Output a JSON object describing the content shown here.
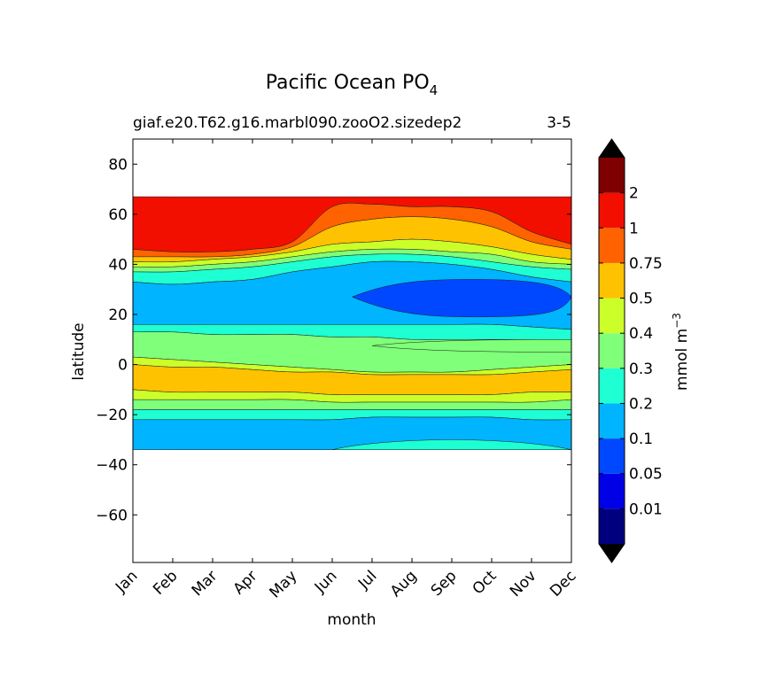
{
  "chart_data": {
    "type": "contourf",
    "title": "Pacific Ocean PO",
    "title_subscript": "4",
    "subtitle_left": "giaf.e20.T62.g16.marbl090.zooO2.sizedep2",
    "subtitle_right": "3-5",
    "xlabel": "month",
    "ylabel": "latitude",
    "x_ticks": [
      "Jan",
      "Feb",
      "Mar",
      "Apr",
      "May",
      "Jun",
      "Jul",
      "Aug",
      "Sep",
      "Oct",
      "Nov",
      "Dec"
    ],
    "y_ticks": [
      80,
      60,
      40,
      20,
      0,
      -20,
      -40,
      -60
    ],
    "y_tick_labels": [
      "80",
      "60",
      "40",
      "20",
      "0",
      "−20",
      "−40",
      "−60"
    ],
    "ylim": [
      -79,
      90
    ],
    "data_lat_range": [
      -34,
      67
    ],
    "colorbar": {
      "label": "mmol m",
      "label_superscript": "−3",
      "levels": [
        0,
        0.01,
        0.05,
        0.1,
        0.2,
        0.3,
        0.4,
        0.5,
        0.75,
        1,
        2,
        3
      ],
      "tick_labels": [
        "0.01",
        "0.05",
        "0.1",
        "0.2",
        "0.3",
        "0.4",
        "0.5",
        "0.75",
        "1",
        "2"
      ],
      "colors": [
        "#00007f",
        "#0000e6",
        "#0048ff",
        "#00b4ff",
        "#1fffd4",
        "#7fff7a",
        "#ccff29",
        "#ffc200",
        "#ff6200",
        "#f20f00",
        "#7f0000"
      ],
      "extend": "both",
      "extend_colors": [
        "#000000",
        "#000000"
      ]
    },
    "bands": [
      {
        "level": "1-2",
        "color": "#f20f00",
        "upper": [
          67,
          67,
          67,
          67,
          67,
          67,
          67,
          67,
          67,
          67,
          67,
          67
        ],
        "lower": [
          46,
          45,
          45,
          46,
          49,
          63,
          64,
          63,
          63,
          61,
          53,
          48
        ]
      },
      {
        "level": "0.75-1",
        "color": "#ff6200",
        "upper": [
          46,
          45,
          45,
          46,
          49,
          63,
          64,
          63,
          63,
          61,
          53,
          48
        ],
        "lower": [
          43,
          43,
          43,
          44,
          47,
          55,
          58,
          59,
          58,
          55,
          49,
          46
        ]
      },
      {
        "level": "0.5-0.75",
        "color": "#ffc200",
        "upper": [
          43,
          43,
          43,
          44,
          47,
          55,
          58,
          59,
          58,
          55,
          49,
          46
        ],
        "lower": [
          41,
          41,
          42,
          43,
          45,
          48,
          49,
          50,
          49,
          47,
          44,
          42
        ]
      },
      {
        "level": "0.4-0.5",
        "color": "#ccff29",
        "upper": [
          41,
          41,
          42,
          43,
          45,
          48,
          49,
          50,
          49,
          47,
          44,
          42
        ],
        "lower": [
          39,
          39,
          40,
          41,
          43,
          45,
          46,
          46,
          45,
          44,
          41,
          40
        ]
      },
      {
        "level": "0.3-0.4",
        "color": "#7fff7a",
        "upper": [
          39,
          39,
          40,
          41,
          43,
          45,
          46,
          46,
          45,
          44,
          41,
          40
        ],
        "lower": [
          37,
          37,
          38,
          39,
          41,
          43,
          44,
          44,
          43,
          41,
          39,
          38
        ]
      },
      {
        "level": "0.2-0.3",
        "color": "#1fffd4",
        "upper": [
          37,
          37,
          38,
          39,
          41,
          43,
          44,
          44,
          43,
          41,
          39,
          38
        ],
        "lower": [
          33,
          32,
          33,
          34,
          37,
          39,
          41,
          41,
          40,
          38,
          35,
          33
        ]
      },
      {
        "level": "0.1-0.2",
        "color": "#00b4ff",
        "upper": [
          33,
          32,
          33,
          34,
          37,
          39,
          41,
          41,
          40,
          38,
          35,
          33
        ],
        "lower": [
          16,
          16,
          16,
          16,
          16,
          16,
          16,
          16,
          16,
          16,
          15,
          14
        ]
      },
      {
        "level": "0.2-0.3",
        "color": "#1fffd4",
        "upper": [
          16,
          16,
          16,
          16,
          16,
          16,
          16,
          16,
          16,
          16,
          15,
          14
        ],
        "lower": [
          13,
          13,
          12,
          12,
          12,
          11,
          11,
          10,
          10,
          10,
          10,
          10
        ]
      },
      {
        "level": "0.3-0.4",
        "color": "#7fff7a",
        "upper": [
          13,
          13,
          12,
          12,
          12,
          11,
          11,
          10,
          10,
          10,
          10,
          10
        ],
        "lower": [
          3,
          2,
          1,
          0,
          -1,
          -2,
          -3,
          -3,
          -3,
          -2,
          -1,
          0
        ]
      },
      {
        "level": "0.4-0.5",
        "color": "#ccff29",
        "upper": [
          3,
          2,
          1,
          0,
          -1,
          -2,
          -3,
          -3,
          -3,
          -2,
          -1,
          0
        ],
        "lower": [
          0,
          -1,
          -1,
          -2,
          -3,
          -3,
          -4,
          -4,
          -4,
          -4,
          -3,
          -2
        ]
      },
      {
        "level": "0.5-0.75",
        "color": "#ffc200",
        "upper": [
          0,
          -1,
          -1,
          -2,
          -3,
          -3,
          -4,
          -4,
          -4,
          -4,
          -3,
          -2
        ],
        "lower": [
          -10,
          -11,
          -11,
          -11,
          -11,
          -12,
          -12,
          -12,
          -12,
          -12,
          -11,
          -11
        ]
      },
      {
        "level": "0.4-0.5",
        "color": "#ccff29",
        "upper": [
          -10,
          -11,
          -11,
          -11,
          -11,
          -12,
          -12,
          -12,
          -12,
          -12,
          -11,
          -11
        ],
        "lower": [
          -14,
          -14,
          -14,
          -14,
          -14,
          -15,
          -15,
          -15,
          -15,
          -15,
          -15,
          -14
        ]
      },
      {
        "level": "0.3-0.4",
        "color": "#7fff7a",
        "upper": [
          -14,
          -14,
          -14,
          -14,
          -14,
          -15,
          -15,
          -15,
          -15,
          -15,
          -15,
          -14
        ],
        "lower": [
          -18,
          -18,
          -18,
          -18,
          -18,
          -18,
          -18,
          -18,
          -18,
          -18,
          -18,
          -18
        ]
      },
      {
        "level": "0.2-0.3",
        "color": "#1fffd4",
        "upper": [
          -18,
          -18,
          -18,
          -18,
          -18,
          -18,
          -18,
          -18,
          -18,
          -18,
          -18,
          -18
        ],
        "lower": [
          -22,
          -22,
          -22,
          -22,
          -22,
          -22,
          -21,
          -21,
          -21,
          -21,
          -22,
          -22
        ]
      },
      {
        "level": "0.1-0.2",
        "color": "#00b4ff",
        "upper": [
          -22,
          -22,
          -22,
          -22,
          -22,
          -22,
          -21,
          -21,
          -21,
          -21,
          -22,
          -22
        ],
        "lower": [
          -34,
          -34,
          -34,
          -34,
          -34,
          -34,
          -34,
          -34,
          -34,
          -34,
          -34,
          -34
        ]
      }
    ],
    "features": [
      {
        "level": "0.05-0.1",
        "color": "#0048ff",
        "shape": "minimum",
        "month_range": [
          5.5,
          11
        ],
        "lat_range": [
          19,
          34
        ],
        "center": [
          8.5,
          27
        ]
      },
      {
        "level": "0.3-0.4",
        "color": "#7fff7a",
        "shape": "tongue",
        "month_range": [
          6,
          11
        ],
        "lat_range": [
          5,
          10
        ]
      },
      {
        "level": "0.2-0.3",
        "color": "#1fffd4",
        "shape": "tongue",
        "month_range": [
          5,
          11
        ],
        "lat_range": [
          -34,
          -30
        ]
      }
    ]
  }
}
